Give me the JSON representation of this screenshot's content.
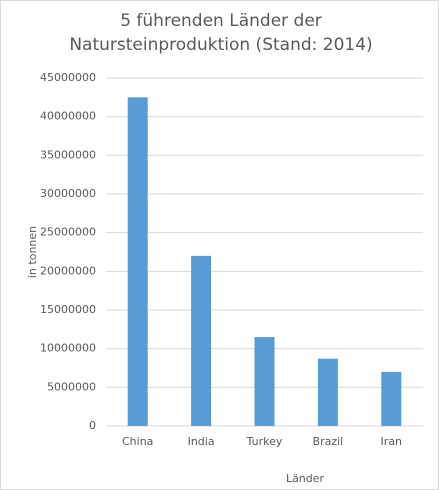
{
  "chart_data": {
    "type": "bar",
    "title": "5 führenden Länder der Natursteinproduktion (Stand: 2014)",
    "x_label": "Länder",
    "y_label": "in tonnen",
    "categories": [
      "China",
      "India",
      "Turkey",
      "Brazil",
      "Iran"
    ],
    "values": [
      42500000,
      22000000,
      11500000,
      8700000,
      7000000
    ],
    "color": "#5b9bd5",
    "ylim": [
      0,
      45000000
    ],
    "yticks": [
      0,
      5000000,
      10000000,
      15000000,
      20000000,
      25000000,
      30000000,
      35000000,
      40000000,
      45000000
    ],
    "grid": true
  }
}
